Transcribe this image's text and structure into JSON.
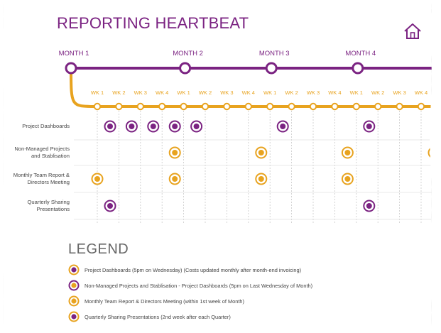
{
  "title": "REPORTING HEARTBEAT",
  "months": [
    {
      "label": "MONTH 1",
      "week_index": 0
    },
    {
      "label": "MONTH 2",
      "week_index": 5
    },
    {
      "label": "MONTH 3",
      "week_index": 9
    },
    {
      "label": "MONTH 4",
      "week_index": 13
    }
  ],
  "weeks": [
    "WK 1",
    "WK 2",
    "WK 3",
    "WK 4",
    "WK 1",
    "WK 2",
    "WK 3",
    "WK 4",
    "WK 1",
    "WK 2",
    "WK 3",
    "WK 4",
    "WK 1",
    "WK 2",
    "WK 3",
    "WK 4"
  ],
  "rows": [
    {
      "label": "Project Dashboards",
      "color": "#7b2382",
      "weeks": [
        1,
        2,
        3,
        4,
        5,
        9,
        13
      ]
    },
    {
      "label": "Non-Managed Projects\nand Stablisation",
      "color": "#e8a31f",
      "weeks": [
        4,
        8,
        12,
        16
      ]
    },
    {
      "label": "Monthly Team Report &\nDirectors Meeting",
      "color": "#e8a31f",
      "weeks": [
        0,
        4,
        8,
        12
      ]
    },
    {
      "label": "Quarterly Sharing\nPresentations",
      "color": "#7b2382",
      "weeks": [
        1,
        13
      ]
    }
  ],
  "legend": {
    "title": "LEGEND",
    "items": [
      {
        "text": "Project Dashboards (5pm on Wednesday) (Costs updated monthly after month-end invoicing)",
        "outer": "#e8a31f",
        "inner": "#7b2382"
      },
      {
        "text": "Non-Managed Projects and Stablisation - Project Dashboards (5pm on Last Wednesday of Month)",
        "outer": "#7b2382",
        "inner": "#e8a31f"
      },
      {
        "text": "Monthly Team Report & Directors Meeting (within 1st week of Month)",
        "outer": "#e8a31f",
        "inner": "#e8a31f"
      },
      {
        "text": "Quarterly Sharing Presentations (2nd week after each Quarter)",
        "outer": "#e8a31f",
        "inner": "#7b2382"
      }
    ]
  },
  "colors": {
    "purple": "#7b2382",
    "orange": "#e8a31f"
  }
}
